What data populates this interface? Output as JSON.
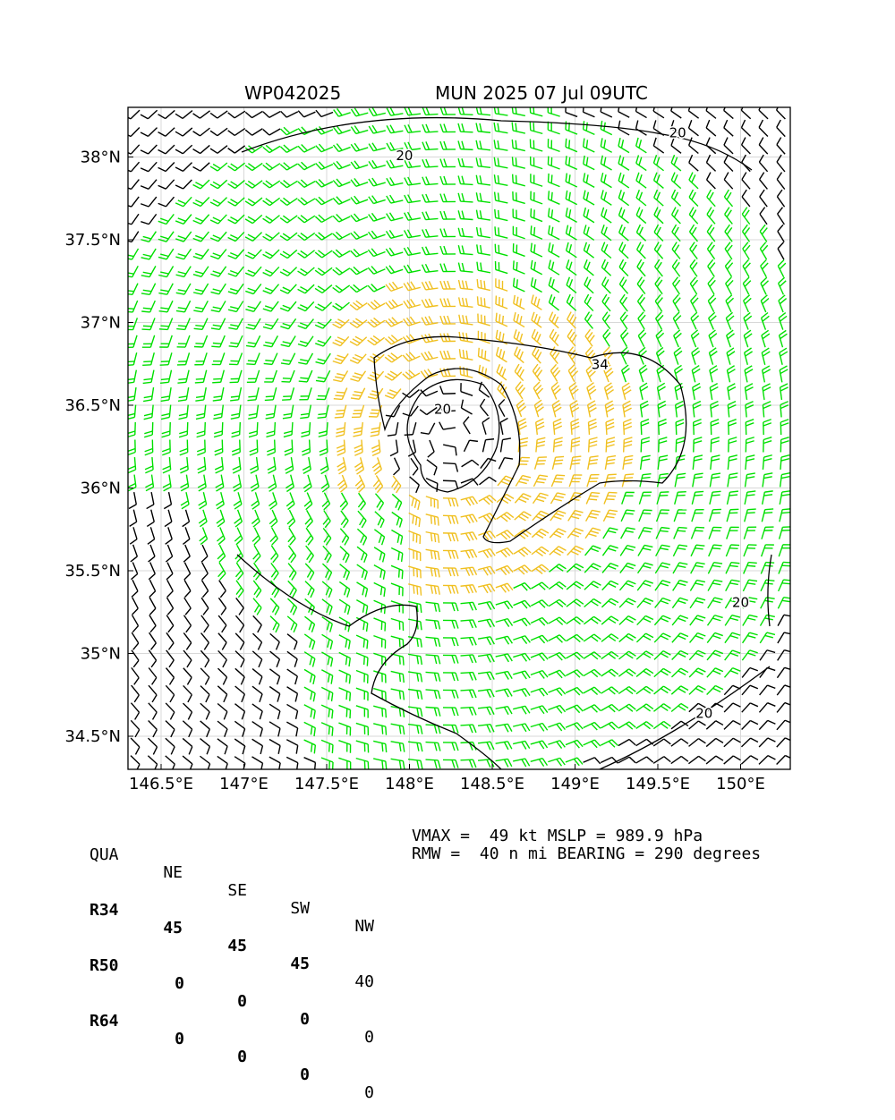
{
  "header": {
    "storm_id": "WP042025",
    "storm_info": "MUN 2025 07 Jul 09UTC"
  },
  "chart_data": {
    "type": "wind_barb_map",
    "title_left": "WP042025",
    "title_right": "MUN 2025 07 Jul 09UTC",
    "xlim": [
      146.3,
      150.3
    ],
    "ylim": [
      34.3,
      38.3
    ],
    "x_ticks": [
      146.5,
      147.0,
      147.5,
      148.0,
      148.5,
      149.0,
      149.5,
      150.0
    ],
    "x_tick_labels": [
      "146.5°E",
      "147°E",
      "147.5°E",
      "148°E",
      "148.5°E",
      "149°E",
      "149.5°E",
      "150°E"
    ],
    "y_ticks": [
      34.5,
      35.0,
      35.5,
      36.0,
      36.5,
      37.0,
      37.5,
      38.0
    ],
    "y_tick_labels": [
      "34.5°N",
      "35°N",
      "35.5°N",
      "36°N",
      "36.5°N",
      "37°N",
      "37.5°N",
      "38°N"
    ],
    "grid": true,
    "center": {
      "lon": 148.25,
      "lat": 36.3
    },
    "barb_colors": {
      "below_34": "#000000",
      "34_to_50": "#00e000",
      "50_to_64": "#f0c020"
    },
    "contour_levels": [
      20,
      34
    ],
    "contour_labels": [
      {
        "text": "20",
        "lon": 149.62,
        "lat": 38.12
      },
      {
        "text": "20",
        "lon": 147.97,
        "lat": 37.98
      },
      {
        "text": "20",
        "lon": 148.2,
        "lat": 36.45
      },
      {
        "text": "34",
        "lon": 149.15,
        "lat": 36.72
      },
      {
        "text": "20",
        "lon": 150.0,
        "lat": 35.28
      },
      {
        "text": "20",
        "lon": 149.78,
        "lat": 34.61
      }
    ]
  },
  "quadrants": {
    "header": [
      "QUA",
      "NE",
      "SE",
      "SW",
      "NW"
    ],
    "rows": [
      {
        "label": "R34",
        "values": [
          "45",
          "45",
          "45",
          "40"
        ]
      },
      {
        "label": "R50",
        "values": [
          "0",
          "0",
          "0",
          "0"
        ]
      },
      {
        "label": "R64",
        "values": [
          "0",
          "0",
          "0",
          "0"
        ]
      }
    ]
  },
  "stats": {
    "line1": "VMAX =  49 kt MSLP = 989.9 hPa",
    "line2": "RMW =  40 n mi BEARING = 290 degrees"
  }
}
